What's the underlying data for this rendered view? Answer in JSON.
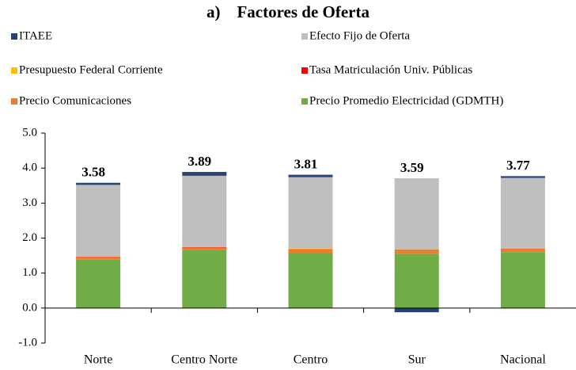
{
  "chart_data": {
    "type": "stacked_bar",
    "title": "a)    Factores de Oferta",
    "categories": [
      "Norte",
      "Centro Norte",
      "Centro",
      "Sur",
      "Nacional"
    ],
    "series": [
      {
        "name": "ITAEE",
        "color": "#264478",
        "values": [
          0.06,
          0.11,
          0.07,
          -0.12,
          0.05
        ]
      },
      {
        "name": "Efecto Fijo de Oferta",
        "color": "#bfbfbf",
        "values": [
          2.03,
          2.02,
          2.04,
          2.03,
          2.0
        ]
      },
      {
        "name": "Presupuesto Federal Corriente",
        "color": "#ffc000",
        "values": [
          0.02,
          0.02,
          0.02,
          0.02,
          0.02
        ]
      },
      {
        "name": "Tasa Matriculación Univ. Públicas",
        "color": "#ff0000",
        "values": [
          0.01,
          0.01,
          0.01,
          0.01,
          0.01
        ]
      },
      {
        "name": "Precio Comunicaciones",
        "color": "#ed7d31",
        "values": [
          0.08,
          0.08,
          0.09,
          0.1,
          0.09
        ]
      },
      {
        "name": "Precio Promedio Electricidad (GDMTH)",
        "color": "#70ad47",
        "values": [
          1.38,
          1.65,
          1.58,
          1.55,
          1.6
        ]
      }
    ],
    "totals": [
      3.58,
      3.89,
      3.81,
      3.59,
      3.77
    ],
    "ylim": [
      -1,
      5
    ],
    "yticks": [
      {
        "value": -1,
        "label": "-1.0"
      },
      {
        "value": 0,
        "label": "0.0"
      },
      {
        "value": 1,
        "label": "1.0"
      },
      {
        "value": 2,
        "label": "2.0"
      },
      {
        "value": 3,
        "label": "3.0"
      },
      {
        "value": 4,
        "label": "4.0"
      },
      {
        "value": 5,
        "label": "5.0"
      }
    ]
  }
}
